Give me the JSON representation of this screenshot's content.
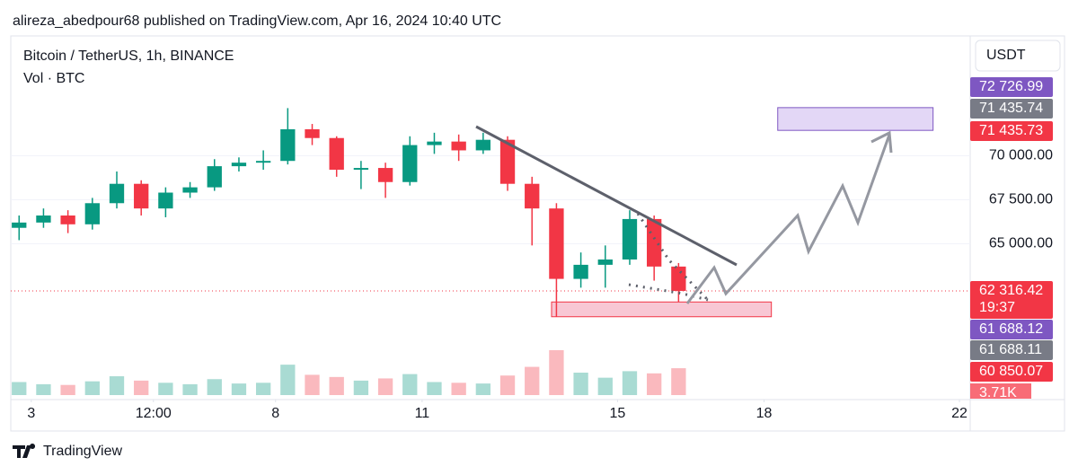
{
  "chart_data": {
    "type": "candlestick",
    "header": "alireza_abedpour68 published on TradingView.com, Apr 16, 2024 10:40 UTC",
    "title": "Bitcoin / TetherUS, 1h, BINANCE",
    "subtitle": "Vol · BTC",
    "currency": "USDT",
    "brand": "TradingView",
    "up_color": "#089981",
    "down_color": "#f23645",
    "x": [
      2.75,
      3.25,
      3.75,
      4.25,
      4.75,
      5.25,
      5.75,
      6.25,
      6.75,
      7.25,
      7.75,
      8.25,
      8.75,
      9.25,
      9.75,
      10.25,
      10.75,
      11.25,
      11.75,
      12.25,
      12.75,
      13.25,
      13.75,
      14.25,
      14.75,
      15.25,
      15.75,
      16.25
    ],
    "open": [
      65900,
      66200,
      66600,
      66100,
      67300,
      68400,
      67000,
      67900,
      68200,
      69400,
      69600,
      69700,
      71500,
      71000,
      69200,
      69300,
      68500,
      70600,
      70800,
      70300,
      70900,
      68400,
      67000,
      63000,
      63800,
      64100,
      66400,
      63700
    ],
    "high": [
      66600,
      67000,
      66900,
      67600,
      69100,
      68600,
      68200,
      68500,
      69800,
      69900,
      70300,
      72700,
      71800,
      71100,
      69700,
      69600,
      71100,
      71300,
      71200,
      71300,
      71100,
      68800,
      67300,
      64500,
      64900,
      66900,
      66600,
      63900
    ],
    "low": [
      65200,
      65900,
      65600,
      65800,
      67000,
      66600,
      66500,
      67600,
      68000,
      69100,
      69200,
      69500,
      70600,
      68800,
      68100,
      67600,
      68300,
      70100,
      69700,
      70100,
      68000,
      64900,
      60850,
      62500,
      62500,
      63800,
      62900,
      61700
    ],
    "close": [
      66200,
      66600,
      66100,
      67300,
      68400,
      67000,
      67900,
      68200,
      69400,
      69600,
      69700,
      71500,
      71000,
      69200,
      69300,
      68500,
      70600,
      70800,
      70300,
      70900,
      68400,
      67000,
      63000,
      63800,
      64100,
      66400,
      63700,
      62316.42
    ],
    "volume": [
      1800,
      1500,
      1400,
      1900,
      2600,
      2000,
      1700,
      1500,
      2200,
      1600,
      1700,
      4200,
      2800,
      2500,
      2000,
      2300,
      2900,
      1800,
      1700,
      1600,
      2700,
      3900,
      6200,
      3100,
      2400,
      3300,
      3000,
      3710
    ],
    "volume_marker": {
      "value": 3710,
      "label": "3.71K"
    },
    "countdown": "19:37",
    "xlim": [
      2.58,
      22.22
    ],
    "xticks": [
      3,
      {
        "value": 5.5,
        "label": "12:00"
      },
      8,
      11,
      15,
      18,
      22
    ],
    "ylim": [
      56400,
      76800
    ],
    "yticks": [
      {
        "value": 65000,
        "label": "65 000.00"
      },
      {
        "value": 67500,
        "label": "67 500.00"
      },
      {
        "value": 70000,
        "label": "70 000.00"
      }
    ],
    "price_markers": [
      {
        "value": 72726.99,
        "label": "72 726.99",
        "color": "#7e57c2"
      },
      {
        "value": 71435.74,
        "label": "71 435.74",
        "color": "#787b86"
      },
      {
        "value": 71435.73,
        "label": "71 435.73",
        "color": "#f23645"
      },
      {
        "value": 62316.42,
        "label": "62 316.42",
        "color": "#f23645"
      },
      {
        "value": 61688.12,
        "label": "61 688.12",
        "color": "#7e57c2"
      },
      {
        "value": 61688.11,
        "label": "61 688.11",
        "color": "#787b86"
      },
      {
        "value": 60850.07,
        "label": "60 850.07",
        "color": "#f23645"
      }
    ],
    "zones": [
      {
        "x0": 18.28,
        "x1": 21.46,
        "top": 72726.99,
        "bottom": 71435.73,
        "fill": "#e3d7f6",
        "edge": "#7e57c2"
      },
      {
        "x0": 13.65,
        "x1": 18.15,
        "top": 61688.12,
        "bottom": 60850.07,
        "fill": "#f8c7d4",
        "edge": "#f23645"
      }
    ]
  }
}
